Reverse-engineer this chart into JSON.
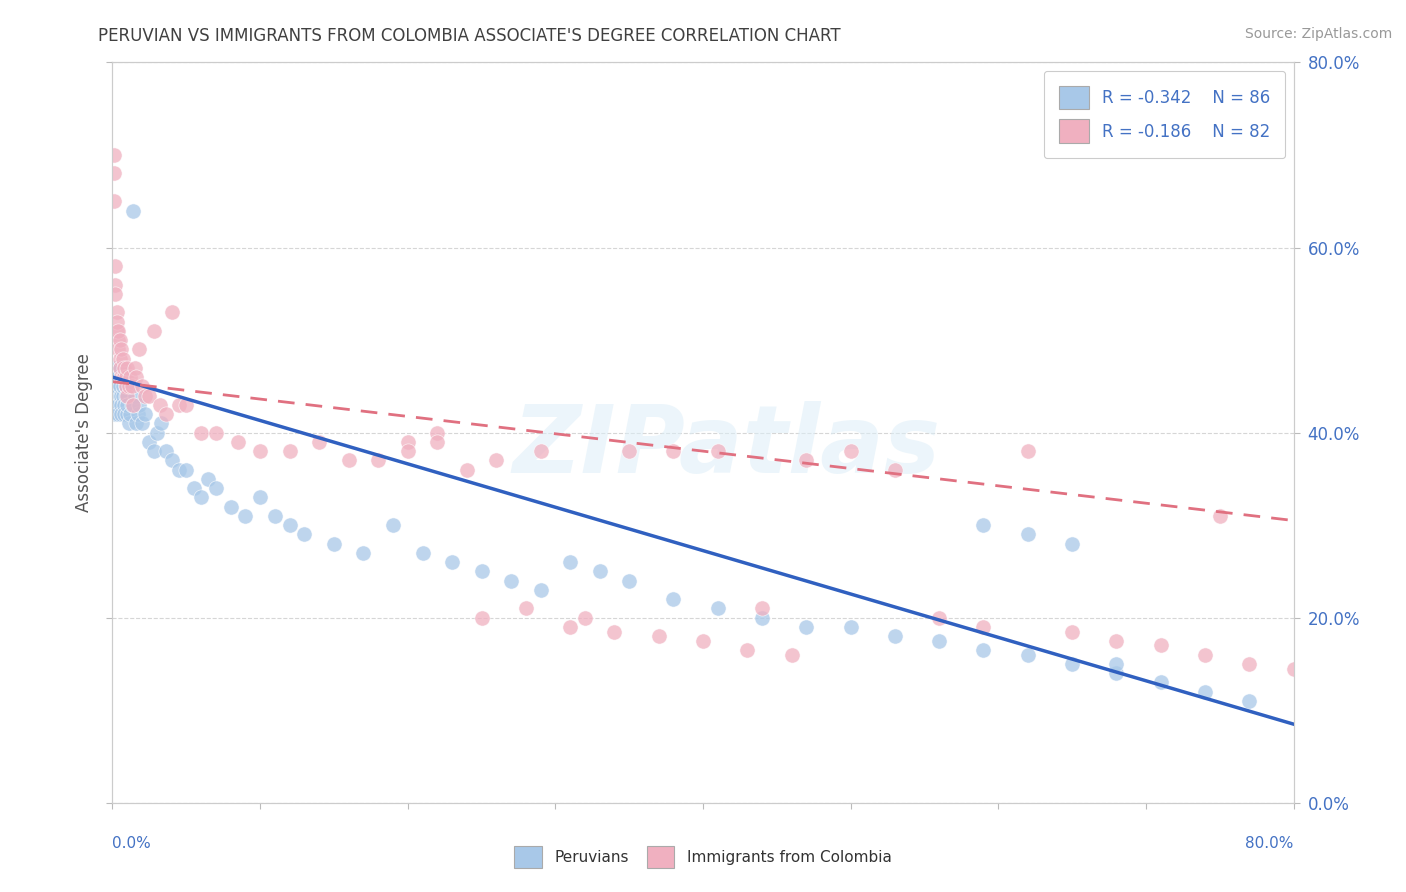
{
  "title": "PERUVIAN VS IMMIGRANTS FROM COLOMBIA ASSOCIATE'S DEGREE CORRELATION CHART",
  "source": "Source: ZipAtlas.com",
  "ylabel": "Associate's Degree",
  "legend_r1": "R = -0.342",
  "legend_n1": "N = 86",
  "legend_r2": "R = -0.186",
  "legend_n2": "N = 82",
  "watermark": "ZIPatlas",
  "blue_color": "#a8c8e8",
  "pink_color": "#f0b0c0",
  "line_blue": "#3060c0",
  "line_pink": "#e07080",
  "axis_label_color": "#4472c4",
  "title_color": "#404040",
  "xmin": 0.0,
  "xmax": 0.8,
  "ymin": 0.0,
  "ymax": 0.8,
  "blue_line_x0": 0.0,
  "blue_line_y0": 0.46,
  "blue_line_x1": 0.8,
  "blue_line_y1": 0.085,
  "pink_line_x0": 0.0,
  "pink_line_y0": 0.455,
  "pink_line_x1": 0.8,
  "pink_line_y1": 0.305,
  "blue_points_x": [
    0.001,
    0.001,
    0.001,
    0.001,
    0.001,
    0.002,
    0.002,
    0.002,
    0.002,
    0.003,
    0.003,
    0.003,
    0.004,
    0.004,
    0.004,
    0.005,
    0.005,
    0.005,
    0.006,
    0.006,
    0.006,
    0.007,
    0.007,
    0.008,
    0.008,
    0.009,
    0.009,
    0.01,
    0.01,
    0.011,
    0.012,
    0.013,
    0.014,
    0.015,
    0.016,
    0.017,
    0.018,
    0.02,
    0.022,
    0.025,
    0.028,
    0.03,
    0.033,
    0.036,
    0.04,
    0.045,
    0.05,
    0.055,
    0.06,
    0.065,
    0.07,
    0.08,
    0.09,
    0.1,
    0.11,
    0.12,
    0.13,
    0.15,
    0.17,
    0.19,
    0.21,
    0.23,
    0.25,
    0.27,
    0.29,
    0.31,
    0.33,
    0.35,
    0.38,
    0.41,
    0.44,
    0.47,
    0.5,
    0.53,
    0.56,
    0.59,
    0.62,
    0.65,
    0.68,
    0.71,
    0.74,
    0.77,
    0.59,
    0.62,
    0.65,
    0.68
  ],
  "blue_points_y": [
    0.45,
    0.46,
    0.47,
    0.44,
    0.43,
    0.45,
    0.46,
    0.43,
    0.42,
    0.46,
    0.45,
    0.44,
    0.46,
    0.43,
    0.42,
    0.44,
    0.45,
    0.47,
    0.44,
    0.43,
    0.42,
    0.44,
    0.45,
    0.43,
    0.42,
    0.44,
    0.45,
    0.42,
    0.43,
    0.41,
    0.42,
    0.43,
    0.64,
    0.44,
    0.41,
    0.42,
    0.43,
    0.41,
    0.42,
    0.39,
    0.38,
    0.4,
    0.41,
    0.38,
    0.37,
    0.36,
    0.36,
    0.34,
    0.33,
    0.35,
    0.34,
    0.32,
    0.31,
    0.33,
    0.31,
    0.3,
    0.29,
    0.28,
    0.27,
    0.3,
    0.27,
    0.26,
    0.25,
    0.24,
    0.23,
    0.26,
    0.25,
    0.24,
    0.22,
    0.21,
    0.2,
    0.19,
    0.19,
    0.18,
    0.175,
    0.165,
    0.16,
    0.15,
    0.14,
    0.13,
    0.12,
    0.11,
    0.3,
    0.29,
    0.28,
    0.15
  ],
  "pink_points_x": [
    0.001,
    0.001,
    0.001,
    0.002,
    0.002,
    0.002,
    0.003,
    0.003,
    0.003,
    0.004,
    0.004,
    0.004,
    0.005,
    0.005,
    0.005,
    0.006,
    0.006,
    0.007,
    0.007,
    0.008,
    0.008,
    0.009,
    0.009,
    0.01,
    0.01,
    0.011,
    0.012,
    0.013,
    0.014,
    0.015,
    0.016,
    0.018,
    0.02,
    0.022,
    0.025,
    0.028,
    0.032,
    0.036,
    0.04,
    0.045,
    0.05,
    0.06,
    0.07,
    0.085,
    0.1,
    0.12,
    0.14,
    0.16,
    0.18,
    0.2,
    0.22,
    0.24,
    0.26,
    0.29,
    0.32,
    0.35,
    0.38,
    0.41,
    0.44,
    0.47,
    0.5,
    0.53,
    0.56,
    0.59,
    0.62,
    0.65,
    0.68,
    0.71,
    0.74,
    0.77,
    0.8,
    0.75,
    0.2,
    0.22,
    0.25,
    0.28,
    0.31,
    0.34,
    0.37,
    0.4,
    0.43,
    0.46
  ],
  "pink_points_y": [
    0.7,
    0.68,
    0.65,
    0.58,
    0.56,
    0.55,
    0.53,
    0.51,
    0.52,
    0.5,
    0.51,
    0.49,
    0.48,
    0.5,
    0.47,
    0.49,
    0.46,
    0.46,
    0.48,
    0.46,
    0.47,
    0.45,
    0.46,
    0.47,
    0.44,
    0.45,
    0.46,
    0.45,
    0.43,
    0.47,
    0.46,
    0.49,
    0.45,
    0.44,
    0.44,
    0.51,
    0.43,
    0.42,
    0.53,
    0.43,
    0.43,
    0.4,
    0.4,
    0.39,
    0.38,
    0.38,
    0.39,
    0.37,
    0.37,
    0.39,
    0.4,
    0.36,
    0.37,
    0.38,
    0.2,
    0.38,
    0.38,
    0.38,
    0.21,
    0.37,
    0.38,
    0.36,
    0.2,
    0.19,
    0.38,
    0.185,
    0.175,
    0.17,
    0.16,
    0.15,
    0.145,
    0.31,
    0.38,
    0.39,
    0.2,
    0.21,
    0.19,
    0.185,
    0.18,
    0.175,
    0.165,
    0.16
  ]
}
